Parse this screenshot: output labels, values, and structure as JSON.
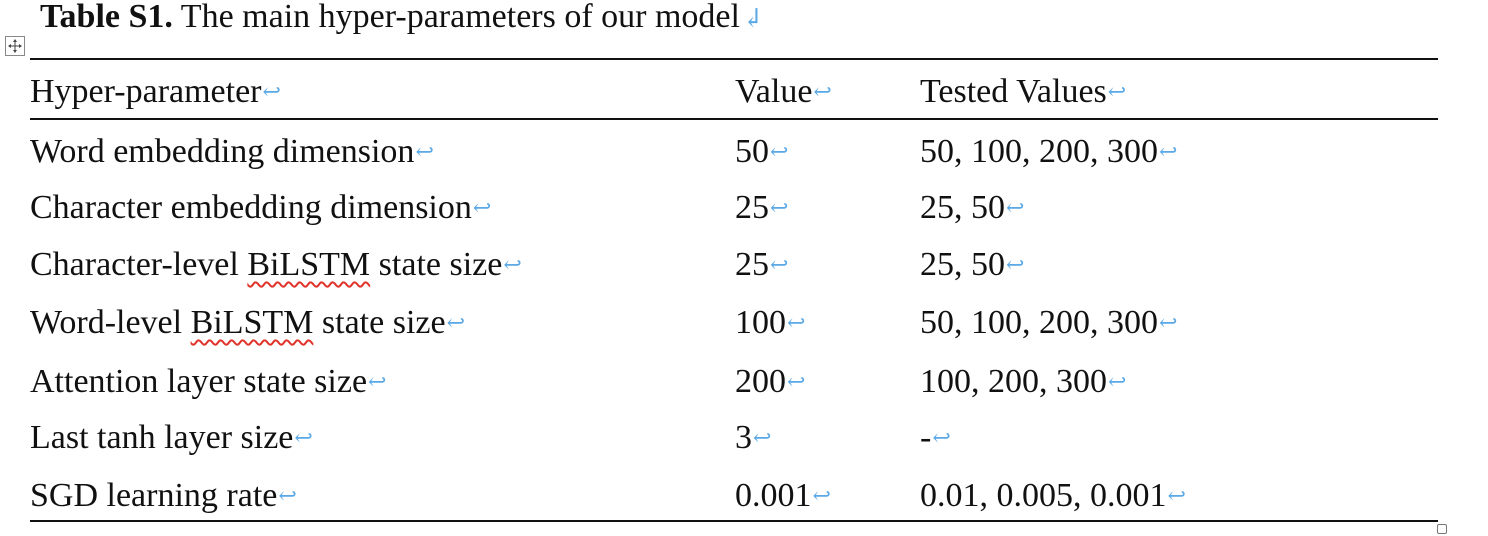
{
  "caption": {
    "label": "Table S1.",
    "text": " The main hyper-parameters of our model",
    "paragraph_mark": "↲"
  },
  "cell_mark": "↩",
  "table": {
    "headers": [
      "Hyper-parameter",
      "Value",
      "Tested Values"
    ],
    "rows": [
      {
        "param_pre": "Word embedding dimension",
        "param_spell": "",
        "param_post": "",
        "value": "50",
        "tested": "50, 100, 200, 300"
      },
      {
        "param_pre": "Character embedding dimension",
        "param_spell": "",
        "param_post": "",
        "value": "25",
        "tested": "25, 50"
      },
      {
        "param_pre": "Character-level ",
        "param_spell": "BiLSTM",
        "param_post": " state size",
        "value": "25",
        "tested": "25, 50"
      },
      {
        "param_pre": "Word-level ",
        "param_spell": "BiLSTM",
        "param_post": " state size",
        "value": "100",
        "tested": "50, 100, 200, 300"
      },
      {
        "param_pre": "Attention layer state size",
        "param_spell": "",
        "param_post": "",
        "value": "200",
        "tested": "100, 200, 300"
      },
      {
        "param_pre": "Last tanh layer size",
        "param_spell": "",
        "param_post": "",
        "value": "3",
        "tested": "-"
      },
      {
        "param_pre": "SGD learning rate",
        "param_spell": "",
        "param_post": "",
        "value": "0.001",
        "tested": "0.01, 0.005, 0.001"
      }
    ]
  }
}
